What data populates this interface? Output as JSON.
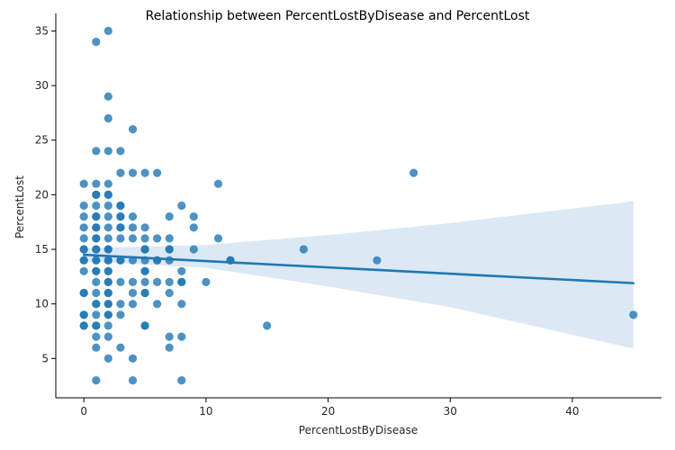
{
  "chart_data": {
    "type": "scatter",
    "title": "Relationship between PercentLostByDisease and PercentLost",
    "xlabel": "PercentLostByDisease",
    "ylabel": "PercentLost",
    "xlim": [
      -2.3,
      47.3
    ],
    "ylim": [
      1.4,
      36.6
    ],
    "xticks": [
      0,
      10,
      20,
      30,
      40
    ],
    "yticks": [
      5,
      10,
      15,
      20,
      25,
      30,
      35
    ],
    "grid": false,
    "point_color": "#1f77b4",
    "point_alpha": 0.8,
    "regression": {
      "x_range": [
        0,
        45
      ],
      "line": [
        [
          0,
          14.5
        ],
        [
          45,
          11.9
        ]
      ],
      "ci_upper": [
        [
          0,
          15.1
        ],
        [
          10,
          15.4
        ],
        [
          20,
          16.3
        ],
        [
          30,
          17.4
        ],
        [
          45,
          19.4
        ]
      ],
      "ci_lower": [
        [
          0,
          13.9
        ],
        [
          10,
          13.3
        ],
        [
          20,
          11.6
        ],
        [
          30,
          9.7
        ],
        [
          45,
          5.9
        ]
      ],
      "color": "#1f77b4",
      "band_color": "#dce8f3"
    },
    "points": [
      [
        0,
        21
      ],
      [
        0,
        19
      ],
      [
        0,
        18
      ],
      [
        0,
        17
      ],
      [
        0,
        16
      ],
      [
        0,
        15
      ],
      [
        0,
        15
      ],
      [
        0,
        14
      ],
      [
        0,
        14
      ],
      [
        0,
        13
      ],
      [
        0,
        11
      ],
      [
        0,
        11
      ],
      [
        0,
        9
      ],
      [
        0,
        9
      ],
      [
        0,
        8
      ],
      [
        0,
        8
      ],
      [
        1,
        34
      ],
      [
        1,
        24
      ],
      [
        1,
        21
      ],
      [
        1,
        20
      ],
      [
        1,
        20
      ],
      [
        1,
        19
      ],
      [
        1,
        18
      ],
      [
        1,
        18
      ],
      [
        1,
        17
      ],
      [
        1,
        17
      ],
      [
        1,
        16
      ],
      [
        1,
        16
      ],
      [
        1,
        15
      ],
      [
        1,
        15
      ],
      [
        1,
        14
      ],
      [
        1,
        14
      ],
      [
        1,
        13
      ],
      [
        1,
        13
      ],
      [
        1,
        12
      ],
      [
        1,
        11
      ],
      [
        1,
        10
      ],
      [
        1,
        10
      ],
      [
        1,
        9
      ],
      [
        1,
        8
      ],
      [
        1,
        8
      ],
      [
        1,
        7
      ],
      [
        1,
        6
      ],
      [
        1,
        3
      ],
      [
        2,
        35
      ],
      [
        2,
        29
      ],
      [
        2,
        27
      ],
      [
        2,
        24
      ],
      [
        2,
        21
      ],
      [
        2,
        20
      ],
      [
        2,
        20
      ],
      [
        2,
        19
      ],
      [
        2,
        18
      ],
      [
        2,
        17
      ],
      [
        2,
        16
      ],
      [
        2,
        15
      ],
      [
        2,
        15
      ],
      [
        2,
        14
      ],
      [
        2,
        14
      ],
      [
        2,
        13
      ],
      [
        2,
        13
      ],
      [
        2,
        12
      ],
      [
        2,
        12
      ],
      [
        2,
        11
      ],
      [
        2,
        11
      ],
      [
        2,
        10
      ],
      [
        2,
        10
      ],
      [
        2,
        9
      ],
      [
        2,
        9
      ],
      [
        2,
        8
      ],
      [
        2,
        7
      ],
      [
        2,
        5
      ],
      [
        3,
        24
      ],
      [
        3,
        22
      ],
      [
        3,
        19
      ],
      [
        3,
        19
      ],
      [
        3,
        18
      ],
      [
        3,
        18
      ],
      [
        3,
        17
      ],
      [
        3,
        17
      ],
      [
        3,
        16
      ],
      [
        3,
        14
      ],
      [
        3,
        14
      ],
      [
        3,
        12
      ],
      [
        3,
        10
      ],
      [
        3,
        9
      ],
      [
        3,
        6
      ],
      [
        4,
        26
      ],
      [
        4,
        22
      ],
      [
        4,
        18
      ],
      [
        4,
        17
      ],
      [
        4,
        16
      ],
      [
        4,
        14
      ],
      [
        4,
        12
      ],
      [
        4,
        11
      ],
      [
        4,
        10
      ],
      [
        4,
        5
      ],
      [
        4,
        3
      ],
      [
        5,
        22
      ],
      [
        5,
        17
      ],
      [
        5,
        16
      ],
      [
        5,
        15
      ],
      [
        5,
        15
      ],
      [
        5,
        14
      ],
      [
        5,
        13
      ],
      [
        5,
        13
      ],
      [
        5,
        12
      ],
      [
        5,
        11
      ],
      [
        5,
        11
      ],
      [
        5,
        8
      ],
      [
        5,
        8
      ],
      [
        6,
        22
      ],
      [
        6,
        16
      ],
      [
        6,
        14
      ],
      [
        6,
        14
      ],
      [
        6,
        12
      ],
      [
        6,
        10
      ],
      [
        7,
        18
      ],
      [
        7,
        16
      ],
      [
        7,
        15
      ],
      [
        7,
        15
      ],
      [
        7,
        14
      ],
      [
        7,
        12
      ],
      [
        7,
        11
      ],
      [
        7,
        7
      ],
      [
        7,
        6
      ],
      [
        8,
        19
      ],
      [
        8,
        13
      ],
      [
        8,
        12
      ],
      [
        8,
        12
      ],
      [
        8,
        10
      ],
      [
        8,
        7
      ],
      [
        8,
        3
      ],
      [
        9,
        18
      ],
      [
        9,
        17
      ],
      [
        9,
        15
      ],
      [
        10,
        12
      ],
      [
        11,
        21
      ],
      [
        11,
        16
      ],
      [
        12,
        14
      ],
      [
        12,
        14
      ],
      [
        15,
        8
      ],
      [
        18,
        15
      ],
      [
        24,
        14
      ],
      [
        27,
        22
      ],
      [
        45,
        9
      ]
    ]
  }
}
